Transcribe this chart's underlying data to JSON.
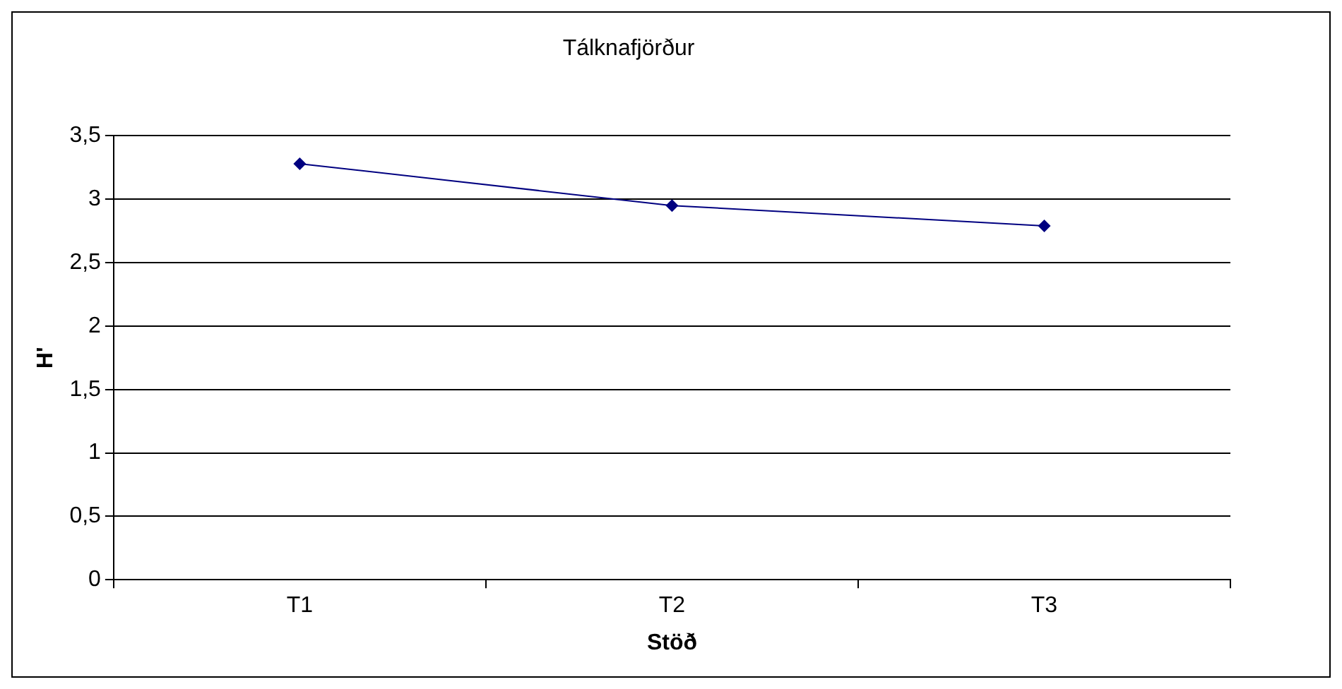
{
  "chart_data": {
    "type": "line",
    "title": "Tálknafjörður",
    "xlabel": "Stöð",
    "ylabel": "H'",
    "categories": [
      "T1",
      "T2",
      "T3"
    ],
    "series": [
      {
        "color": "#000080",
        "values": [
          3.28,
          2.95,
          2.79
        ]
      }
    ],
    "ylim": [
      0,
      3.5
    ],
    "yticks": [
      0,
      {
        "value": 0.5,
        "label": "0,5"
      },
      1,
      {
        "value": 1.5,
        "label": "1,5"
      },
      2,
      {
        "value": 2.5,
        "label": "2,5"
      },
      3,
      {
        "value": 3.5,
        "label": "3,5"
      }
    ],
    "grid": "y",
    "legend": false,
    "marker": "diamond",
    "line_style": "solid"
  }
}
